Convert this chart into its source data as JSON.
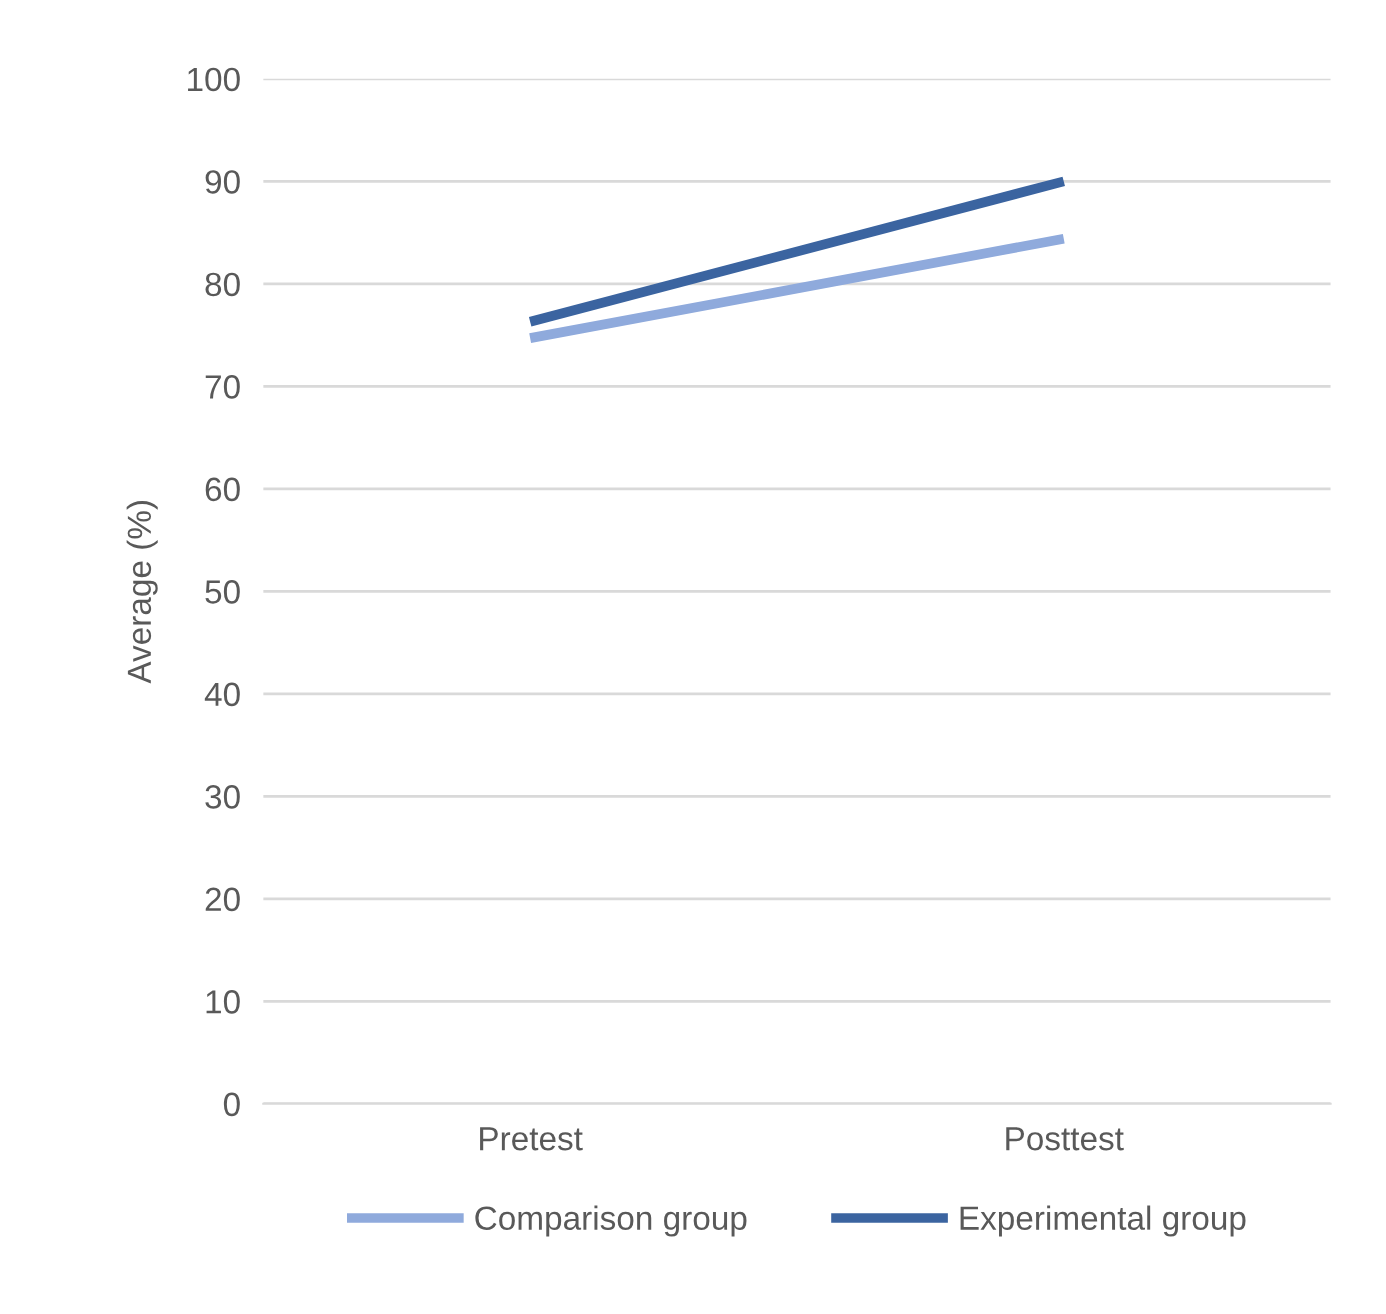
{
  "chart_data": {
    "type": "line",
    "ylabel": "Average (%)",
    "categories": [
      "Pretest",
      "Posttest"
    ],
    "series": [
      {
        "name": "Comparison group",
        "color": "#8faadc",
        "values": [
          74.7,
          84.4
        ]
      },
      {
        "name": "Experimental group",
        "color": "#3b64a0",
        "values": [
          76.3,
          90
        ]
      }
    ],
    "ylim": [
      0,
      100
    ],
    "yticks": [
      0,
      10,
      20,
      30,
      40,
      50,
      60,
      70,
      80,
      90,
      100
    ],
    "grid": "y",
    "legend": "bottom",
    "marker": "none",
    "line_style": "solid"
  }
}
